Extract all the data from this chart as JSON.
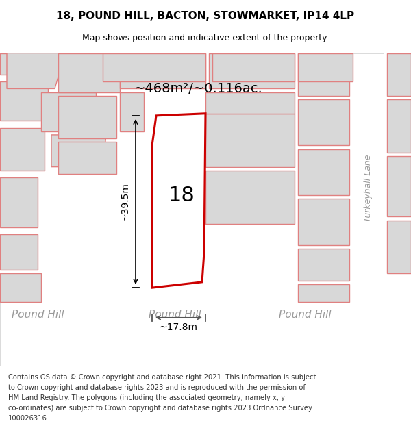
{
  "title": "18, POUND HILL, BACTON, STOWMARKET, IP14 4LP",
  "subtitle": "Map shows position and indicative extent of the property.",
  "footer_lines": [
    "Contains OS data © Crown copyright and database right 2021. This information is subject",
    "to Crown copyright and database rights 2023 and is reproduced with the permission of",
    "HM Land Registry. The polygons (including the associated geometry, namely x, y",
    "co-ordinates) are subject to Crown copyright and database rights 2023 Ordnance Survey",
    "100026316."
  ],
  "area_label": "~468m²/~0.116ac.",
  "height_label": "~39.5m",
  "width_label": "~17.8m",
  "house_number": "18",
  "map_bg": "#f0f0f0",
  "building_fill": "#d8d8d8",
  "building_stroke": "#e08080",
  "road_fill": "#ffffff",
  "highlight_stroke": "#cc0000",
  "highlight_fill": "#ffffff",
  "street_text_color": "#999999",
  "title_fontsize": 11,
  "subtitle_fontsize": 9,
  "footer_fontsize": 7.2,
  "area_fontsize": 14,
  "dim_fontsize": 10,
  "street_fontsize": 11,
  "house_number_fontsize": 22
}
